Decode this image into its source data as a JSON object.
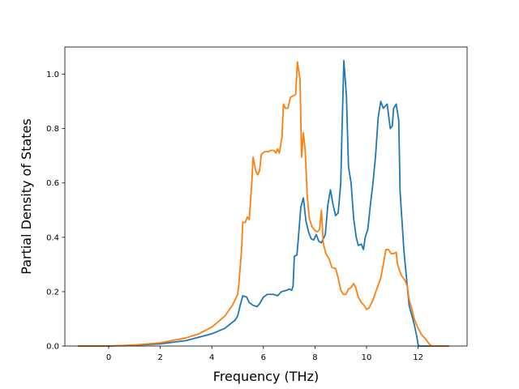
{
  "chart_data": {
    "type": "line",
    "title": "",
    "xlabel": "Frequency (THz)",
    "ylabel": "Partial Density of States",
    "xlim": [
      -1.7,
      13.9
    ],
    "ylim": [
      0.0,
      1.1
    ],
    "xticks": [
      0,
      2,
      4,
      6,
      8,
      10,
      12
    ],
    "yticks": [
      0.0,
      0.2,
      0.4,
      0.6,
      0.8,
      1.0
    ],
    "xtick_labels": [
      "0",
      "2",
      "4",
      "6",
      "8",
      "10",
      "12"
    ],
    "ytick_labels": [
      "0.0",
      "0.2",
      "0.4",
      "0.6",
      "0.8",
      "1.0"
    ],
    "grid": false,
    "legend": "none",
    "series": [
      {
        "color": "#1f77b4",
        "points": [
          [
            -1.2,
            0.0
          ],
          [
            0.0,
            0.0
          ],
          [
            1.0,
            0.003
          ],
          [
            2.0,
            0.008
          ],
          [
            3.0,
            0.02
          ],
          [
            4.0,
            0.045
          ],
          [
            4.5,
            0.065
          ],
          [
            4.9,
            0.095
          ],
          [
            5.0,
            0.11
          ],
          [
            5.1,
            0.15
          ],
          [
            5.2,
            0.185
          ],
          [
            5.35,
            0.18
          ],
          [
            5.45,
            0.16
          ],
          [
            5.6,
            0.15
          ],
          [
            5.75,
            0.145
          ],
          [
            5.85,
            0.155
          ],
          [
            6.0,
            0.18
          ],
          [
            6.15,
            0.19
          ],
          [
            6.4,
            0.19
          ],
          [
            6.55,
            0.185
          ],
          [
            6.7,
            0.2
          ],
          [
            6.9,
            0.205
          ],
          [
            7.0,
            0.21
          ],
          [
            7.1,
            0.205
          ],
          [
            7.15,
            0.22
          ],
          [
            7.2,
            0.33
          ],
          [
            7.3,
            0.335
          ],
          [
            7.35,
            0.39
          ],
          [
            7.45,
            0.51
          ],
          [
            7.55,
            0.545
          ],
          [
            7.65,
            0.46
          ],
          [
            7.75,
            0.42
          ],
          [
            7.85,
            0.395
          ],
          [
            7.95,
            0.39
          ],
          [
            8.05,
            0.41
          ],
          [
            8.15,
            0.385
          ],
          [
            8.25,
            0.38
          ],
          [
            8.4,
            0.41
          ],
          [
            8.5,
            0.52
          ],
          [
            8.6,
            0.575
          ],
          [
            8.7,
            0.52
          ],
          [
            8.8,
            0.48
          ],
          [
            8.9,
            0.49
          ],
          [
            9.0,
            0.6
          ],
          [
            9.05,
            0.8
          ],
          [
            9.12,
            1.05
          ],
          [
            9.22,
            0.92
          ],
          [
            9.3,
            0.66
          ],
          [
            9.4,
            0.6
          ],
          [
            9.5,
            0.47
          ],
          [
            9.6,
            0.4
          ],
          [
            9.68,
            0.37
          ],
          [
            9.8,
            0.375
          ],
          [
            9.88,
            0.355
          ],
          [
            9.95,
            0.4
          ],
          [
            10.05,
            0.43
          ],
          [
            10.15,
            0.52
          ],
          [
            10.25,
            0.6
          ],
          [
            10.35,
            0.7
          ],
          [
            10.45,
            0.84
          ],
          [
            10.55,
            0.9
          ],
          [
            10.65,
            0.875
          ],
          [
            10.8,
            0.89
          ],
          [
            10.92,
            0.8
          ],
          [
            11.0,
            0.81
          ],
          [
            11.05,
            0.875
          ],
          [
            11.15,
            0.89
          ],
          [
            11.25,
            0.83
          ],
          [
            11.3,
            0.57
          ],
          [
            11.45,
            0.35
          ],
          [
            11.65,
            0.15
          ],
          [
            11.85,
            0.08
          ],
          [
            11.95,
            0.035
          ],
          [
            12.0,
            0.005
          ],
          [
            12.05,
            0.0
          ],
          [
            13.2,
            0.0
          ]
        ]
      },
      {
        "color": "#ff7f0e",
        "points": [
          [
            -1.2,
            0.0
          ],
          [
            0.0,
            0.0
          ],
          [
            1.0,
            0.004
          ],
          [
            2.0,
            0.012
          ],
          [
            3.0,
            0.03
          ],
          [
            3.5,
            0.045
          ],
          [
            4.0,
            0.07
          ],
          [
            4.5,
            0.11
          ],
          [
            4.8,
            0.15
          ],
          [
            5.0,
            0.19
          ],
          [
            5.05,
            0.23
          ],
          [
            5.15,
            0.35
          ],
          [
            5.2,
            0.455
          ],
          [
            5.3,
            0.455
          ],
          [
            5.38,
            0.475
          ],
          [
            5.45,
            0.465
          ],
          [
            5.55,
            0.6
          ],
          [
            5.6,
            0.695
          ],
          [
            5.7,
            0.645
          ],
          [
            5.78,
            0.63
          ],
          [
            5.85,
            0.645
          ],
          [
            5.92,
            0.705
          ],
          [
            6.05,
            0.715
          ],
          [
            6.2,
            0.715
          ],
          [
            6.3,
            0.72
          ],
          [
            6.4,
            0.72
          ],
          [
            6.48,
            0.71
          ],
          [
            6.55,
            0.725
          ],
          [
            6.62,
            0.71
          ],
          [
            6.72,
            0.77
          ],
          [
            6.78,
            0.89
          ],
          [
            6.85,
            0.875
          ],
          [
            6.95,
            0.875
          ],
          [
            7.05,
            0.915
          ],
          [
            7.15,
            0.92
          ],
          [
            7.25,
            0.925
          ],
          [
            7.32,
            1.045
          ],
          [
            7.42,
            0.98
          ],
          [
            7.48,
            0.695
          ],
          [
            7.55,
            0.785
          ],
          [
            7.62,
            0.72
          ],
          [
            7.7,
            0.55
          ],
          [
            7.78,
            0.47
          ],
          [
            7.88,
            0.44
          ],
          [
            8.0,
            0.425
          ],
          [
            8.1,
            0.42
          ],
          [
            8.18,
            0.43
          ],
          [
            8.25,
            0.5
          ],
          [
            8.32,
            0.38
          ],
          [
            8.42,
            0.34
          ],
          [
            8.55,
            0.32
          ],
          [
            8.65,
            0.29
          ],
          [
            8.8,
            0.285
          ],
          [
            8.9,
            0.25
          ],
          [
            9.0,
            0.205
          ],
          [
            9.1,
            0.19
          ],
          [
            9.2,
            0.19
          ],
          [
            9.3,
            0.21
          ],
          [
            9.4,
            0.215
          ],
          [
            9.5,
            0.23
          ],
          [
            9.58,
            0.215
          ],
          [
            9.68,
            0.18
          ],
          [
            9.8,
            0.16
          ],
          [
            9.9,
            0.15
          ],
          [
            10.0,
            0.135
          ],
          [
            10.1,
            0.14
          ],
          [
            10.25,
            0.17
          ],
          [
            10.4,
            0.21
          ],
          [
            10.55,
            0.25
          ],
          [
            10.65,
            0.3
          ],
          [
            10.75,
            0.355
          ],
          [
            10.85,
            0.355
          ],
          [
            10.95,
            0.34
          ],
          [
            11.05,
            0.34
          ],
          [
            11.15,
            0.345
          ],
          [
            11.2,
            0.3
          ],
          [
            11.35,
            0.26
          ],
          [
            11.5,
            0.24
          ],
          [
            11.58,
            0.22
          ],
          [
            11.65,
            0.17
          ],
          [
            11.75,
            0.14
          ],
          [
            11.85,
            0.1
          ],
          [
            12.0,
            0.065
          ],
          [
            12.15,
            0.04
          ],
          [
            12.3,
            0.025
          ],
          [
            12.45,
            0.005
          ],
          [
            12.55,
            0.0
          ],
          [
            13.2,
            0.0
          ]
        ]
      }
    ]
  }
}
